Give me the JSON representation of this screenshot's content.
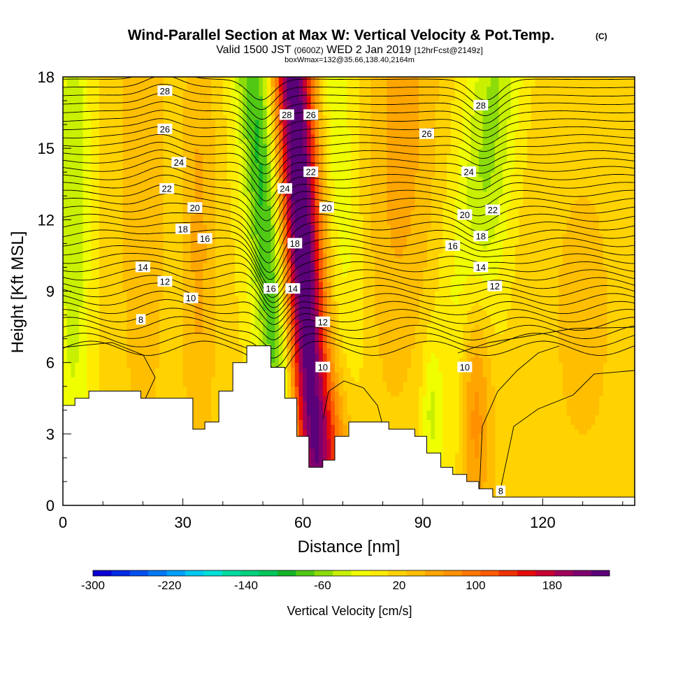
{
  "chart_data": {
    "type": "heatmap",
    "title": "Wind-Parallel Section at Max W: Vertical Velocity & Pot.Temp.",
    "title_mark": "(C)",
    "subtitle": {
      "prefix": "Valid 1500 JST",
      "utc": "(0600Z)",
      "date": "WED 2 Jan 2019",
      "forecast": "[12hrFcst@2149z]"
    },
    "info_line": "boxWmax=132@35.66,138.40,2164m",
    "xlabel": "Distance [nm]",
    "ylabel": "Height [Kft MSL]",
    "xlim": [
      0,
      143
    ],
    "ylim": [
      0,
      18
    ],
    "x_ticks": [
      "0",
      "30",
      "60",
      "90",
      "120"
    ],
    "y_ticks": [
      "0",
      "3",
      "6",
      "9",
      "12",
      "15",
      "18"
    ],
    "colorbar": {
      "label": "Vertical Velocity [cm/s]",
      "tick_labels": [
        "-300",
        "-220",
        "-140",
        "-60",
        "20",
        "100",
        "180"
      ],
      "tick_values": [
        -300,
        -220,
        -140,
        -60,
        20,
        100,
        180
      ],
      "range": [
        -300,
        240
      ],
      "colors": [
        "#0a00d2",
        "#0028e6",
        "#0050f0",
        "#0078f5",
        "#00a0f8",
        "#00c8f0",
        "#00e0d8",
        "#00dca0",
        "#00d27d",
        "#00c85a",
        "#14b428",
        "#50c814",
        "#8cdc0a",
        "#c8f000",
        "#f0ff00",
        "#ffeb00",
        "#ffd200",
        "#ffbe00",
        "#ffa500",
        "#ff9100",
        "#ff7800",
        "#ff5a00",
        "#f03200",
        "#e60a0a",
        "#c80032",
        "#a0005a",
        "#7d006e",
        "#5a0078"
      ]
    },
    "theta_contour_labels": [
      {
        "text": "28",
        "x": 25.5,
        "y": 17.4
      },
      {
        "text": "26",
        "x": 25.5,
        "y": 15.8
      },
      {
        "text": "24",
        "x": 29.0,
        "y": 14.4
      },
      {
        "text": "22",
        "x": 26.0,
        "y": 13.3
      },
      {
        "text": "20",
        "x": 33.0,
        "y": 12.5
      },
      {
        "text": "18",
        "x": 30.0,
        "y": 11.6
      },
      {
        "text": "16",
        "x": 35.5,
        "y": 11.2
      },
      {
        "text": "14",
        "x": 20.0,
        "y": 10.0
      },
      {
        "text": "12",
        "x": 25.5,
        "y": 9.4
      },
      {
        "text": "10",
        "x": 32.0,
        "y": 8.7
      },
      {
        "text": "8",
        "x": 19.5,
        "y": 7.8
      },
      {
        "text": "28",
        "x": 56.0,
        "y": 16.4
      },
      {
        "text": "26",
        "x": 62.0,
        "y": 16.4
      },
      {
        "text": "24",
        "x": 55.5,
        "y": 13.3
      },
      {
        "text": "22",
        "x": 62.0,
        "y": 14.0
      },
      {
        "text": "20",
        "x": 66.0,
        "y": 12.5
      },
      {
        "text": "18",
        "x": 58.0,
        "y": 11.0
      },
      {
        "text": "16",
        "x": 52.0,
        "y": 9.1
      },
      {
        "text": "14",
        "x": 57.5,
        "y": 9.1
      },
      {
        "text": "12",
        "x": 65.0,
        "y": 7.7
      },
      {
        "text": "10",
        "x": 65.0,
        "y": 5.8
      },
      {
        "text": "28",
        "x": 104.5,
        "y": 16.8
      },
      {
        "text": "26",
        "x": 91.0,
        "y": 15.6
      },
      {
        "text": "24",
        "x": 101.5,
        "y": 14.0
      },
      {
        "text": "22",
        "x": 107.5,
        "y": 12.4
      },
      {
        "text": "20",
        "x": 100.5,
        "y": 12.2
      },
      {
        "text": "18",
        "x": 104.5,
        "y": 11.3
      },
      {
        "text": "16",
        "x": 97.5,
        "y": 10.9
      },
      {
        "text": "14",
        "x": 104.5,
        "y": 10.0
      },
      {
        "text": "12",
        "x": 108.0,
        "y": 9.2
      },
      {
        "text": "10",
        "x": 100.5,
        "y": 5.8
      },
      {
        "text": "8",
        "x": 109.5,
        "y": 0.6
      }
    ],
    "terrain": [
      [
        0,
        4.2
      ],
      [
        3,
        4.2
      ],
      [
        3,
        4.5
      ],
      [
        6.5,
        4.5
      ],
      [
        6.5,
        4.8
      ],
      [
        19.5,
        4.8
      ],
      [
        19.5,
        4.5
      ],
      [
        32.5,
        4.5
      ],
      [
        32.5,
        3.2
      ],
      [
        35.5,
        3.2
      ],
      [
        35.5,
        3.5
      ],
      [
        39,
        3.5
      ],
      [
        39,
        4.8
      ],
      [
        42.5,
        4.8
      ],
      [
        42.5,
        6.0
      ],
      [
        46,
        6.0
      ],
      [
        46,
        6.7
      ],
      [
        52,
        6.7
      ],
      [
        52,
        5.8
      ],
      [
        55.5,
        5.8
      ],
      [
        55.5,
        4.5
      ],
      [
        58.5,
        4.5
      ],
      [
        58.5,
        2.9
      ],
      [
        61.5,
        2.9
      ],
      [
        61.5,
        1.6
      ],
      [
        65,
        1.6
      ],
      [
        65,
        1.9
      ],
      [
        68,
        1.9
      ],
      [
        68,
        2.9
      ],
      [
        71.5,
        2.9
      ],
      [
        71.5,
        3.5
      ],
      [
        81.5,
        3.5
      ],
      [
        81.5,
        3.2
      ],
      [
        88,
        3.2
      ],
      [
        88,
        2.9
      ],
      [
        91,
        2.9
      ],
      [
        91,
        2.2
      ],
      [
        94.5,
        2.2
      ],
      [
        94.5,
        1.6
      ],
      [
        97.5,
        1.6
      ],
      [
        97.5,
        1.3
      ],
      [
        101,
        1.3
      ],
      [
        101,
        1.0
      ],
      [
        104,
        1.0
      ],
      [
        104,
        0.7
      ],
      [
        107.5,
        0.7
      ],
      [
        107.5,
        0.35
      ],
      [
        143,
        0.35
      ],
      [
        143,
        0
      ]
    ],
    "vertical_velocity_features": [
      {
        "x": 59.5,
        "y": 12.0,
        "sx": 3.6,
        "sy": 14,
        "tilt": -0.3,
        "amp": 250
      },
      {
        "x": 50.5,
        "y": 12.5,
        "sx": 3.4,
        "sy": 14,
        "tilt": -0.5,
        "amp": -110
      },
      {
        "x": 106.0,
        "y": 14.5,
        "sx": 5.0,
        "sy": 9,
        "tilt": 0.6,
        "amp": -70
      },
      {
        "x": 103.0,
        "y": 4.5,
        "sx": 3.0,
        "sy": 4,
        "tilt": 0,
        "amp": 85
      },
      {
        "x": 2.5,
        "y": 13.0,
        "sx": 3.0,
        "sy": 9,
        "tilt": 0,
        "amp": -60
      },
      {
        "x": 68.0,
        "y": 15.5,
        "sx": 4.0,
        "sy": 8,
        "tilt": -0.3,
        "amp": -40
      },
      {
        "x": 85.0,
        "y": 16.0,
        "sx": 6.0,
        "sy": 8,
        "tilt": 0.2,
        "amp": 45
      },
      {
        "x": 20.0,
        "y": 14.0,
        "sx": 4.0,
        "sy": 9,
        "tilt": 0,
        "amp": 35
      },
      {
        "x": 34.0,
        "y": 11.0,
        "sx": 3.0,
        "sy": 8,
        "tilt": 0,
        "amp": 40
      },
      {
        "x": 67.0,
        "y": 2.8,
        "sx": 3.5,
        "sy": 2,
        "tilt": 0,
        "amp": 55
      },
      {
        "x": 92.0,
        "y": 4.0,
        "sx": 1.5,
        "sy": 2,
        "tilt": 0,
        "amp": -40
      },
      {
        "x": 130.0,
        "y": 8.0,
        "sx": 12.0,
        "sy": 10,
        "tilt": 0,
        "amp": 18
      }
    ]
  }
}
